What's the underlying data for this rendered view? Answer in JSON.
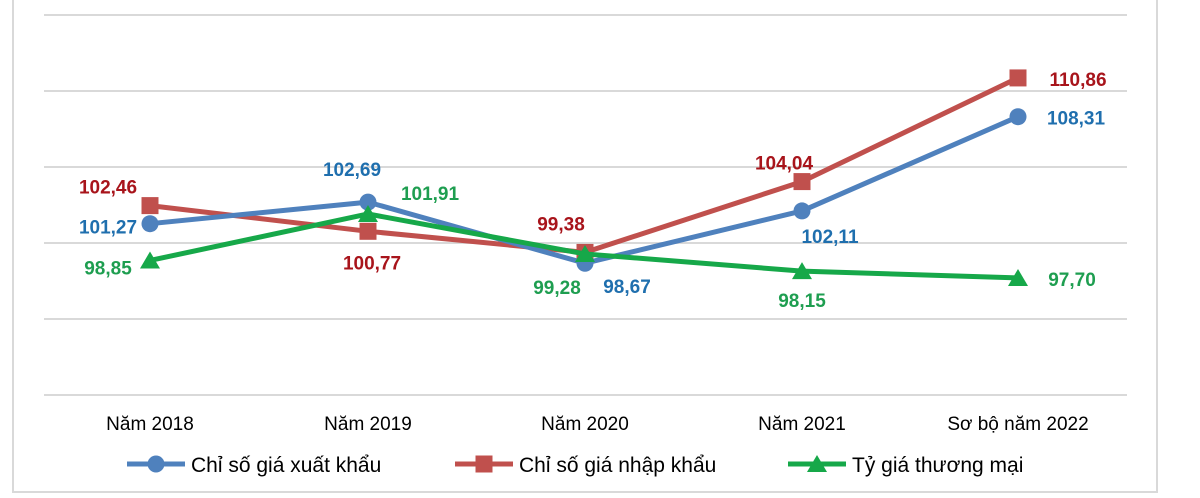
{
  "chart_data": {
    "type": "line",
    "title": "",
    "xlabel": "",
    "ylabel": "",
    "categories": [
      "Năm 2018",
      "Năm 2019",
      "Năm 2020",
      "Năm 2021",
      "Sơ bộ năm 2022"
    ],
    "ylim": [
      90,
      115
    ],
    "ytick_step": 5,
    "y_tick_labels_shown": false,
    "grid": true,
    "legend_position": "bottom",
    "series": [
      {
        "name": "Chỉ số giá xuất khẩu",
        "marker": "circle",
        "color": "#4f81bd",
        "label_color": "#1f6fae",
        "values": [
          101.27,
          102.69,
          98.67,
          102.11,
          108.31
        ],
        "labels": [
          "101,27",
          "102,69",
          "98,67",
          "102,11",
          "108,31"
        ]
      },
      {
        "name": "Chỉ số giá nhập khẩu",
        "marker": "square",
        "color": "#c0504d",
        "label_color": "#a8141b",
        "values": [
          102.46,
          100.77,
          99.38,
          104.04,
          110.86
        ],
        "labels": [
          "102,46",
          "100,77",
          "99,38",
          "104,04",
          "110,86"
        ]
      },
      {
        "name": "Tỷ giá thương mại",
        "marker": "triangle",
        "color": "#16a849",
        "label_color": "#1e9e50",
        "values": [
          98.85,
          101.91,
          99.28,
          98.15,
          97.7
        ],
        "labels": [
          "98,85",
          "101,91",
          "99,28",
          "98,15",
          "97,70"
        ]
      }
    ]
  }
}
